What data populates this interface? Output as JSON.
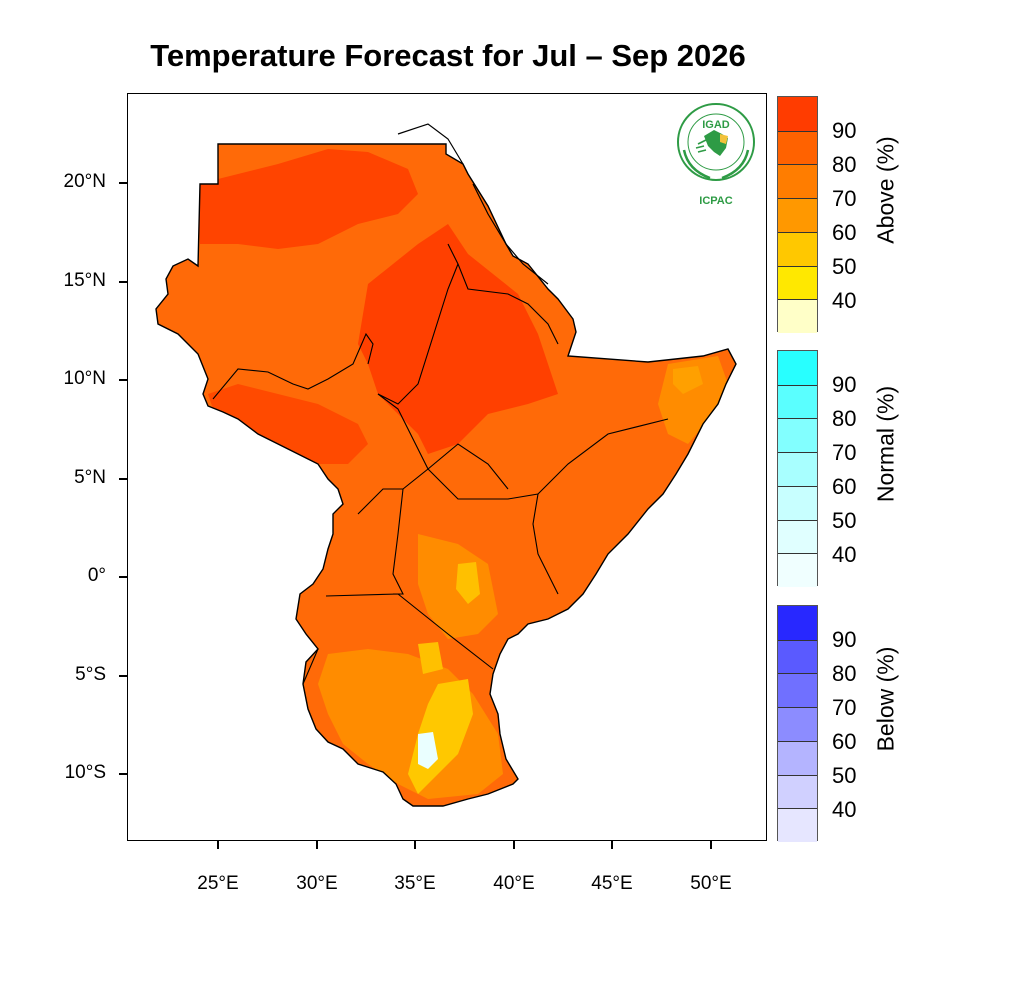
{
  "title": "Temperature Forecast for Jul – Sep 2026",
  "map": {
    "region": "Greater Horn of Africa",
    "lat_labels": [
      "20°N",
      "15°N",
      "10°N",
      "5°N",
      "0°",
      "5°S",
      "10°S"
    ],
    "lon_labels": [
      "25°E",
      "30°E",
      "35°E",
      "40°E",
      "45°E",
      "50°E"
    ],
    "dominant_category": "Above",
    "colors": {
      "above_70_80": "#ff6a08",
      "above_80_90": "#ff4a00",
      "above_60_70": "#ff8c00",
      "above_50_60": "#ffc800",
      "normal_40": "#e8ffff"
    }
  },
  "logo": {
    "org": "IGAD",
    "center": "ICPAC"
  },
  "legends": [
    {
      "title": "Above (%)",
      "labels": [
        "90",
        "80",
        "70",
        "60",
        "50",
        "40"
      ],
      "colors": [
        "#ff3c00",
        "#ff6200",
        "#ff7d00",
        "#ff9800",
        "#ffc800",
        "#ffe800",
        "#ffffc8"
      ]
    },
    {
      "title": "Normal (%)",
      "labels": [
        "90",
        "80",
        "70",
        "60",
        "50",
        "40"
      ],
      "colors": [
        "#28ffff",
        "#5affff",
        "#82ffff",
        "#a8ffff",
        "#c8ffff",
        "#e0ffff",
        "#f0ffff"
      ]
    },
    {
      "title": "Below (%)",
      "labels": [
        "90",
        "80",
        "70",
        "60",
        "50",
        "40"
      ],
      "colors": [
        "#2828ff",
        "#5a5aff",
        "#7070ff",
        "#8c8cff",
        "#b4b4ff",
        "#d0d0ff",
        "#e6e6ff"
      ]
    }
  ]
}
